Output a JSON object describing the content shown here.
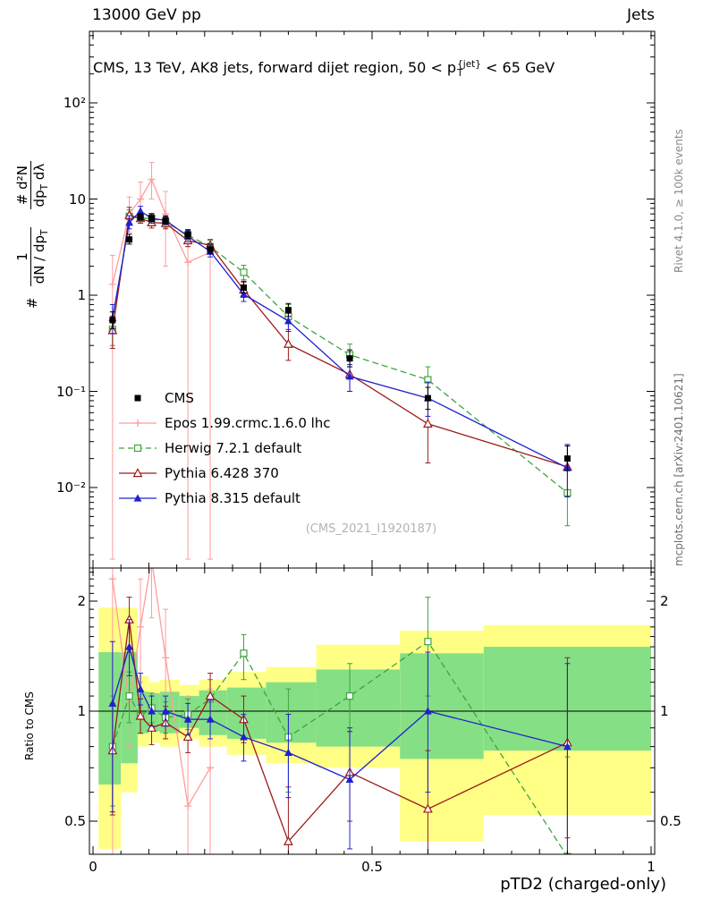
{
  "header": {
    "left": "13000 GeV pp",
    "right": "Jets"
  },
  "titles": {
    "plot_title_prefix": "CMS, 13 TeV, AK8 jets, forward dijet region, 50 < p",
    "plot_title_sup": "{jet}",
    "plot_title_sub": "T",
    "plot_title_suffix": " < 65 GeV",
    "watermark": "(CMS_2021_I1920187)",
    "xaxis_title": "pTD2 (charged-only)",
    "ratio_ylabel": "Ratio to CMS",
    "right_note_top": "Rivet 4.1.0, ≥ 100k events",
    "right_note_bottom": "mcplots.cern.ch [arXiv:2401.10621]"
  },
  "ylabel_parts": {
    "hash": "#",
    "f1n": "1",
    "f1d_a": "dN / dp",
    "f1d_s": "T",
    "f2n": "# d²N",
    "f2d_a": "dp",
    "f2d_s": "T",
    "f2d_b": " dλ"
  },
  "chart_data": {
    "type": "line",
    "title": "CMS, 13 TeV, AK8 jets, forward dijet region, 50 < pT{jet} < 65 GeV",
    "xlabel": "pTD2 (charged-only)",
    "ylabel": "# 1/(dN/dpT) d²N/(dpT dλ)",
    "ylabel_ratio": "Ratio to CMS",
    "x_range": [
      0,
      1
    ],
    "y_scale": "log",
    "y_range_main": [
      0.0015,
      550
    ],
    "y_range_ratio": [
      0.406,
      2.46
    ],
    "grid": false,
    "legend_position": "middle-left",
    "x": [
      0.035,
      0.065,
      0.085,
      0.105,
      0.13,
      0.17,
      0.21,
      0.27,
      0.35,
      0.46,
      0.6,
      0.85
    ],
    "series": [
      {
        "name": "CMS",
        "color": "#000000",
        "marker": "square-filled",
        "line": "none",
        "values": [
          0.55,
          3.8,
          6.5,
          6.3,
          6.0,
          4.3,
          3.0,
          1.2,
          0.7,
          0.22,
          0.085,
          0.02
        ],
        "err_lo": [
          0.45,
          3.4,
          6.0,
          5.8,
          5.5,
          3.9,
          2.7,
          1.05,
          0.6,
          0.18,
          0.065,
          0.015
        ],
        "err_hi": [
          0.67,
          4.3,
          7.1,
          6.9,
          6.6,
          4.8,
          3.4,
          1.4,
          0.82,
          0.27,
          0.11,
          0.027
        ]
      },
      {
        "name": "Epos 1.99.crmc.1.6.0 lhc",
        "color": "#ff9c9c",
        "marker": "cross",
        "line": "solid",
        "x": [
          0.035,
          0.065,
          0.085,
          0.105,
          0.13,
          0.17,
          0.21
        ],
        "values": [
          1.3,
          7.0,
          10.0,
          16.0,
          7.0,
          2.2,
          2.8
        ],
        "err_lo": [
          0.0018,
          4.5,
          6.5,
          10.0,
          2.0,
          0.0018,
          0.0018
        ],
        "err_hi": [
          2.6,
          10.5,
          15.0,
          24.0,
          12.0,
          4.5,
          3.4
        ],
        "ratio": [
          2.3,
          1.05,
          1.7,
          2.6,
          1.4,
          0.55,
          0.7
        ],
        "ratio_lo": [
          0.3,
          0.8,
          1.2,
          1.8,
          0.9,
          0.3,
          0.3
        ],
        "ratio_hi": [
          2.6,
          1.35,
          2.3,
          3.2,
          1.9,
          1.1,
          1.15
        ]
      },
      {
        "name": "Herwig 7.2.1 default",
        "color": "#3fa33f",
        "marker": "square-open",
        "line": "dashed",
        "values": [
          0.44,
          6.6,
          6.3,
          6.3,
          5.8,
          4.2,
          3.2,
          1.73,
          0.6,
          0.24,
          0.132,
          0.0088
        ],
        "err_lo": [
          0.3,
          5.6,
          5.6,
          5.6,
          5.1,
          3.7,
          2.8,
          1.45,
          0.42,
          0.18,
          0.09,
          0.004
        ],
        "err_hi": [
          0.6,
          7.7,
          7.1,
          7.1,
          6.6,
          4.8,
          3.7,
          2.05,
          0.8,
          0.31,
          0.18,
          0.016
        ],
        "ratio": [
          0.8,
          1.1,
          0.97,
          1.02,
          0.96,
          0.98,
          1.08,
          1.44,
          0.85,
          1.1,
          1.55,
          0.4
        ],
        "ratio_lo": [
          0.55,
          0.93,
          0.87,
          0.93,
          0.87,
          0.89,
          0.95,
          1.22,
          0.6,
          0.88,
          1.1,
          0.33
        ],
        "ratio_hi": [
          1.1,
          1.28,
          1.08,
          1.12,
          1.06,
          1.08,
          1.22,
          1.62,
          1.15,
          1.35,
          2.05,
          0.75
        ]
      },
      {
        "name": "Pythia 6.428 370",
        "color": "#9b1b1b",
        "marker": "triangle-open",
        "line": "solid",
        "values": [
          0.43,
          6.8,
          6.3,
          5.7,
          5.6,
          3.7,
          3.3,
          1.14,
          0.31,
          0.15,
          0.046,
          0.0164
        ],
        "err_lo": [
          0.28,
          5.6,
          5.6,
          5.0,
          4.9,
          3.2,
          2.9,
          0.95,
          0.21,
          0.1,
          0.018,
          0.008
        ],
        "err_hi": [
          0.6,
          8.2,
          7.1,
          6.5,
          6.4,
          4.3,
          3.8,
          1.36,
          0.44,
          0.21,
          0.08,
          0.028
        ],
        "ratio": [
          0.78,
          1.78,
          0.97,
          0.9,
          0.93,
          0.85,
          1.1,
          0.95,
          0.44,
          0.68,
          0.54,
          0.82
        ],
        "ratio_lo": [
          0.52,
          1.45,
          0.87,
          0.81,
          0.84,
          0.77,
          0.95,
          0.82,
          0.36,
          0.5,
          0.38,
          0.45
        ],
        "ratio_hi": [
          1.05,
          2.05,
          1.08,
          1.0,
          1.03,
          0.94,
          1.27,
          1.1,
          0.62,
          0.88,
          0.78,
          1.4
        ]
      },
      {
        "name": "Pythia 8.315 default",
        "color": "#2020d0",
        "marker": "triangle-filled",
        "line": "solid",
        "values": [
          0.58,
          5.7,
          7.5,
          6.3,
          6.0,
          4.1,
          2.85,
          1.02,
          0.54,
          0.143,
          0.085,
          0.016
        ],
        "err_lo": [
          0.4,
          4.9,
          6.7,
          5.6,
          5.4,
          3.6,
          2.5,
          0.86,
          0.42,
          0.1,
          0.055,
          0.008
        ],
        "err_hi": [
          0.8,
          6.7,
          8.4,
          7.1,
          6.7,
          4.7,
          3.3,
          1.21,
          0.68,
          0.19,
          0.125,
          0.028
        ],
        "ratio": [
          1.05,
          1.5,
          1.15,
          1.0,
          1.0,
          0.95,
          0.95,
          0.85,
          0.77,
          0.65,
          1.0,
          0.8
        ],
        "ratio_lo": [
          0.53,
          1.25,
          1.04,
          0.91,
          0.91,
          0.86,
          0.84,
          0.73,
          0.58,
          0.42,
          0.6,
          0.4
        ],
        "ratio_hi": [
          1.55,
          1.78,
          1.27,
          1.1,
          1.1,
          1.05,
          1.07,
          0.98,
          0.98,
          0.9,
          1.45,
          1.35
        ]
      }
    ],
    "ratio_bands": {
      "yellow": "#ffff85",
      "green": "#85e085",
      "bins": [
        [
          0.01,
          0.05,
          0.42,
          1.92,
          0.63,
          1.45
        ],
        [
          0.05,
          0.08,
          0.6,
          1.92,
          0.72,
          1.45
        ],
        [
          0.08,
          0.1,
          0.8,
          1.25,
          0.87,
          1.13
        ],
        [
          0.1,
          0.12,
          0.82,
          1.2,
          0.88,
          1.12
        ],
        [
          0.12,
          0.155,
          0.8,
          1.22,
          0.87,
          1.13
        ],
        [
          0.155,
          0.19,
          0.84,
          1.18,
          0.9,
          1.1
        ],
        [
          0.19,
          0.24,
          0.8,
          1.22,
          0.86,
          1.14
        ],
        [
          0.24,
          0.31,
          0.76,
          1.28,
          0.84,
          1.16
        ],
        [
          0.31,
          0.4,
          0.72,
          1.32,
          0.82,
          1.2
        ],
        [
          0.4,
          0.55,
          0.7,
          1.52,
          0.8,
          1.3
        ],
        [
          0.55,
          0.7,
          0.44,
          1.66,
          0.74,
          1.44
        ],
        [
          0.7,
          1.0,
          0.52,
          1.72,
          0.78,
          1.5
        ]
      ]
    },
    "yticks_main": [
      {
        "v": 100,
        "t": "10²"
      },
      {
        "v": 10,
        "t": "10"
      },
      {
        "v": 1,
        "t": "1"
      },
      {
        "v": 0.1,
        "t": "10⁻¹"
      },
      {
        "v": 0.01,
        "t": "10⁻²"
      }
    ],
    "yticks_ratio": [
      {
        "v": 2,
        "t": "2"
      },
      {
        "v": 1,
        "t": "1"
      },
      {
        "v": 0.5,
        "t": "0.5"
      }
    ],
    "xticks": [
      {
        "v": 0,
        "t": "0"
      },
      {
        "v": 0.5,
        "t": "0.5"
      },
      {
        "v": 1,
        "t": "1"
      }
    ]
  }
}
